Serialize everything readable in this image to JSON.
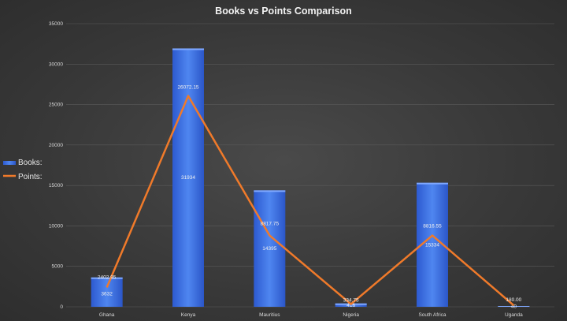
{
  "chart_data": {
    "type": "bar",
    "title": "Books vs Points Comparison",
    "categories": [
      "Ghana",
      "Kenya",
      "Mauritius",
      "Nigeria",
      "South Africa",
      "Uganda"
    ],
    "series": [
      {
        "name": "Books:",
        "type": "bar",
        "values": [
          3632,
          31934,
          14395,
          416,
          15334,
          40
        ],
        "color": "#3b6fe0"
      },
      {
        "name": "Points:",
        "type": "line",
        "values": [
          2402.95,
          26072.15,
          8817.75,
          334.75,
          8816.55,
          180.0
        ],
        "color": "#f07a2a"
      }
    ],
    "bar_labels": [
      "3632",
      "31934",
      "14395",
      "416",
      "15334",
      "40"
    ],
    "point_labels": [
      "2402.95",
      "26072.15",
      "8817.75",
      "334.75",
      "8816.55",
      "180.00"
    ],
    "ylim": [
      0,
      35000
    ],
    "yticks": [
      0,
      5000,
      10000,
      15000,
      20000,
      25000,
      30000,
      35000
    ],
    "grid": true,
    "legend": "left"
  }
}
